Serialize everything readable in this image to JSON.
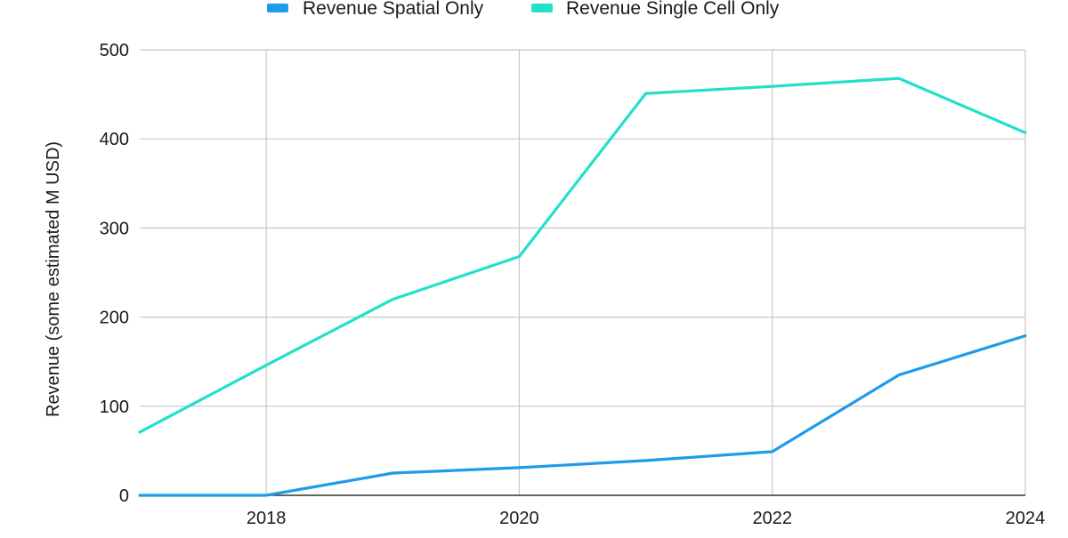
{
  "chart_data": {
    "type": "line",
    "title": "",
    "xlabel": "",
    "ylabel": "Revenue (some estimated M USD)",
    "x": [
      2017,
      2018,
      2019,
      2020,
      2021,
      2022,
      2023,
      2024
    ],
    "xlim": [
      2017,
      2024
    ],
    "ylim": [
      0,
      500
    ],
    "x_ticks": [
      2018,
      2020,
      2022,
      2024
    ],
    "x_tick_labels": [
      "2018",
      "2020",
      "2022",
      "2024"
    ],
    "y_ticks": [
      0,
      100,
      200,
      300,
      400,
      500
    ],
    "y_tick_labels": [
      "0",
      "100",
      "200",
      "300",
      "400",
      "500"
    ],
    "grid": true,
    "legend_position": "top",
    "series": [
      {
        "name": "Revenue Spatial Only",
        "color": "#1e9be9",
        "values": [
          0,
          0,
          25,
          31,
          39,
          49,
          135,
          179
        ]
      },
      {
        "name": "Revenue Single Cell Only",
        "color": "#22e0c9",
        "values": [
          71,
          146,
          220,
          268,
          451,
          459,
          468,
          407
        ]
      }
    ]
  }
}
